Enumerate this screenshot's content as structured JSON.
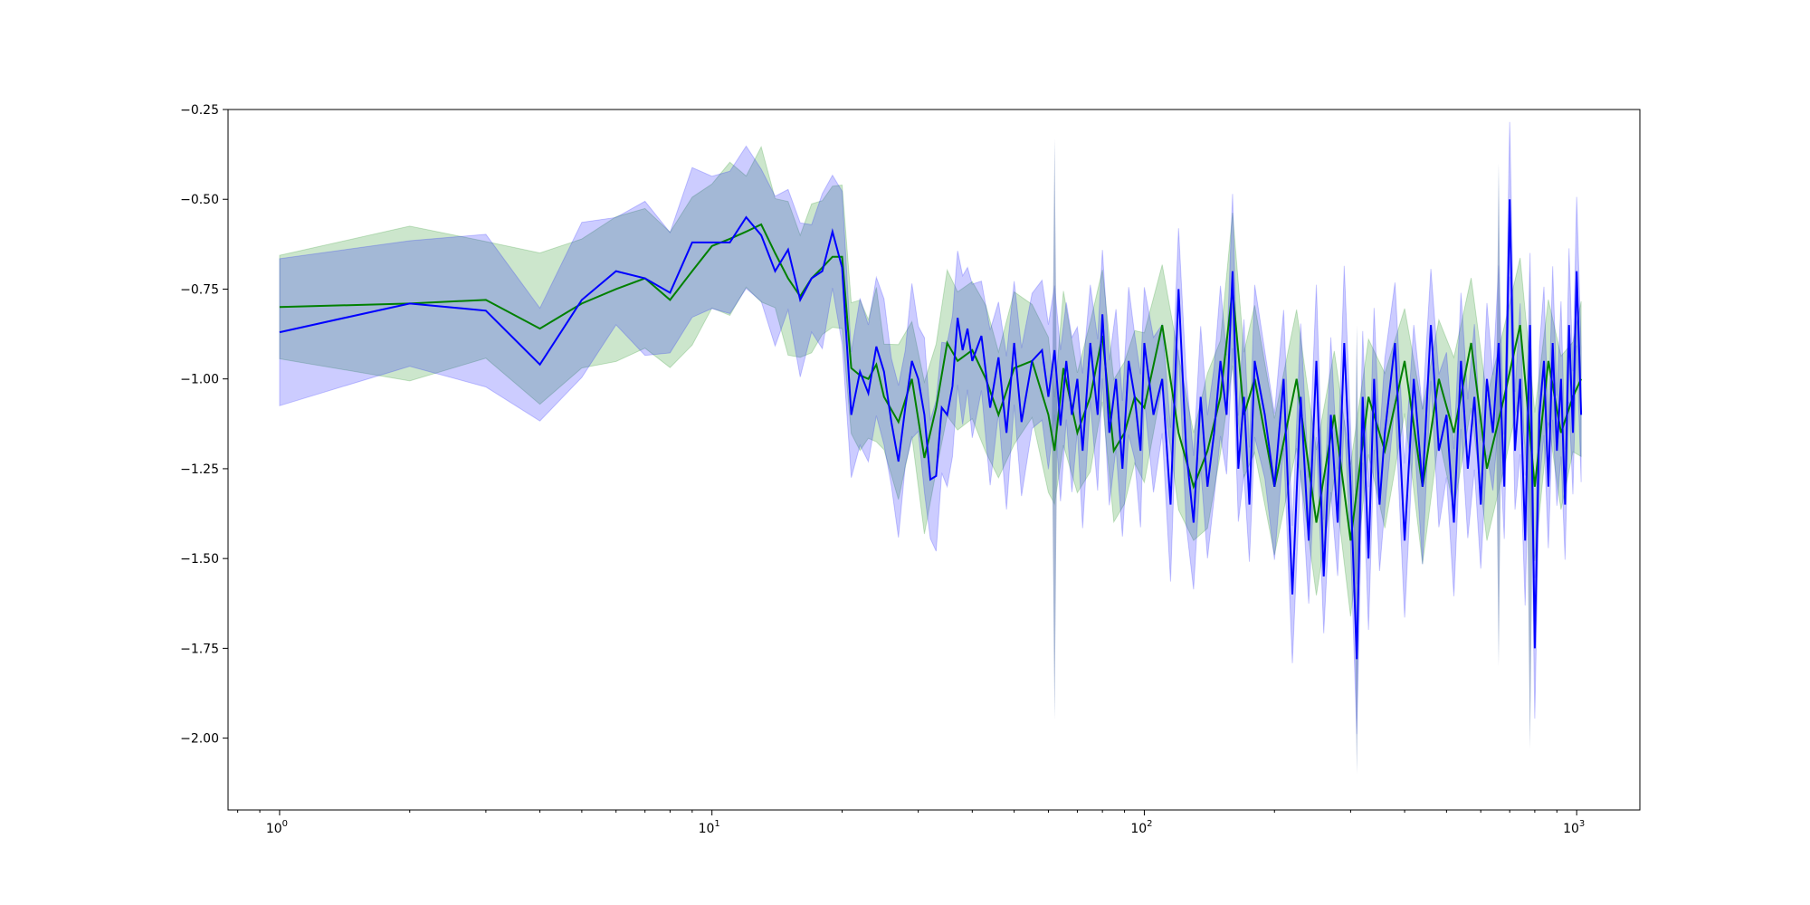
{
  "chart_data": {
    "type": "line",
    "title": "",
    "xlabel": "",
    "ylabel": "",
    "x_scale": "log",
    "xlim": [
      0.76,
      1400
    ],
    "ylim": [
      -2.2,
      -0.25
    ],
    "grid": false,
    "y_ticks": [
      {
        "value": -0.25,
        "label": "−0.25"
      },
      {
        "value": -0.5,
        "label": "−0.50"
      },
      {
        "value": -0.75,
        "label": "−0.75"
      },
      {
        "value": -1.0,
        "label": "−1.00"
      },
      {
        "value": -1.25,
        "label": "−1.25"
      },
      {
        "value": -1.5,
        "label": "−1.50"
      },
      {
        "value": -1.75,
        "label": "−1.75"
      },
      {
        "value": -2.0,
        "label": "−2.00"
      }
    ],
    "x_ticks": [
      {
        "value": 1,
        "base": "10",
        "exp": "0"
      },
      {
        "value": 10,
        "base": "10",
        "exp": "1"
      },
      {
        "value": 100,
        "base": "10",
        "exp": "2"
      },
      {
        "value": 1000,
        "base": "10",
        "exp": "3"
      }
    ],
    "series": [
      {
        "color": "#008000",
        "band_color": "#008000",
        "band_opacity": 0.2,
        "band_width": 0.18,
        "x": [
          1,
          2,
          3,
          4,
          5,
          6,
          7,
          8,
          9,
          10,
          11,
          12,
          13,
          14,
          15,
          16,
          17,
          18,
          19,
          20,
          21,
          22,
          23,
          24,
          25,
          27,
          29,
          31,
          33,
          35,
          37,
          40,
          43,
          46,
          50,
          55,
          60,
          62,
          65,
          70,
          75,
          80,
          85,
          90,
          95,
          100,
          110,
          120,
          130,
          140,
          150,
          160,
          170,
          180,
          200,
          225,
          250,
          275,
          300,
          330,
          360,
          400,
          440,
          480,
          520,
          570,
          620,
          680,
          740,
          800,
          860,
          920,
          980,
          1024
        ],
        "y": [
          -0.8,
          -0.79,
          -0.78,
          -0.86,
          -0.79,
          -0.75,
          -0.72,
          -0.78,
          -0.7,
          -0.63,
          -0.61,
          -0.59,
          -0.57,
          -0.65,
          -0.72,
          -0.77,
          -0.72,
          -0.69,
          -0.66,
          -0.66,
          -0.97,
          -0.99,
          -1.0,
          -0.96,
          -1.05,
          -1.12,
          -1.0,
          -1.22,
          -1.08,
          -0.9,
          -0.95,
          -0.92,
          -1.0,
          -1.1,
          -0.97,
          -0.95,
          -1.1,
          -1.2,
          -0.97,
          -1.15,
          -1.05,
          -0.88,
          -1.2,
          -1.15,
          -1.05,
          -1.08,
          -0.85,
          -1.15,
          -1.3,
          -1.2,
          -1.05,
          -0.75,
          -1.1,
          -1.0,
          -1.3,
          -1.0,
          -1.4,
          -1.1,
          -1.45,
          -1.05,
          -1.2,
          -0.95,
          -1.3,
          -1.0,
          -1.15,
          -0.9,
          -1.25,
          -1.05,
          -0.85,
          -1.3,
          -0.95,
          -1.15,
          -1.05,
          -1.0
        ]
      },
      {
        "color": "#0000ff",
        "band_color": "#0000ff",
        "band_opacity": 0.2,
        "band_width": 0.18,
        "x": [
          1,
          2,
          3,
          4,
          5,
          6,
          7,
          8,
          9,
          10,
          11,
          12,
          13,
          14,
          15,
          16,
          17,
          18,
          19,
          20,
          21,
          22,
          23,
          24,
          25,
          26,
          27,
          28,
          29,
          30,
          31,
          32,
          33,
          34,
          35,
          36,
          37,
          38,
          39,
          40,
          42,
          44,
          46,
          48,
          50,
          52,
          55,
          58,
          60,
          62,
          64,
          66,
          68,
          70,
          72,
          75,
          78,
          80,
          83,
          86,
          89,
          92,
          95,
          98,
          100,
          105,
          110,
          115,
          120,
          125,
          130,
          135,
          140,
          145,
          150,
          155,
          160,
          165,
          170,
          175,
          180,
          190,
          200,
          210,
          220,
          230,
          240,
          250,
          260,
          270,
          280,
          290,
          300,
          310,
          320,
          330,
          340,
          350,
          360,
          380,
          400,
          420,
          440,
          460,
          480,
          500,
          520,
          540,
          560,
          580,
          600,
          620,
          640,
          660,
          680,
          700,
          720,
          740,
          760,
          780,
          800,
          820,
          840,
          860,
          880,
          900,
          920,
          940,
          960,
          980,
          1000,
          1024
        ],
        "y": [
          -0.87,
          -0.79,
          -0.81,
          -0.96,
          -0.78,
          -0.7,
          -0.72,
          -0.76,
          -0.62,
          -0.62,
          -0.62,
          -0.55,
          -0.6,
          -0.7,
          -0.64,
          -0.78,
          -0.72,
          -0.7,
          -0.59,
          -0.69,
          -1.1,
          -0.98,
          -1.04,
          -0.91,
          -0.98,
          -1.12,
          -1.23,
          -1.08,
          -0.95,
          -1.0,
          -1.1,
          -1.28,
          -1.27,
          -1.08,
          -1.1,
          -1.02,
          -0.83,
          -0.92,
          -0.86,
          -0.95,
          -0.88,
          -1.08,
          -0.94,
          -1.15,
          -0.9,
          -1.12,
          -0.95,
          -0.92,
          -1.05,
          -0.92,
          -1.13,
          -0.95,
          -1.1,
          -1.0,
          -1.2,
          -0.9,
          -1.1,
          -0.82,
          -1.15,
          -1.0,
          -1.25,
          -0.95,
          -1.05,
          -1.2,
          -0.9,
          -1.1,
          -1.0,
          -1.35,
          -0.75,
          -1.2,
          -1.4,
          -1.05,
          -1.3,
          -1.15,
          -0.95,
          -1.1,
          -0.7,
          -1.25,
          -1.05,
          -1.35,
          -0.95,
          -1.1,
          -1.3,
          -1.0,
          -1.6,
          -1.05,
          -1.45,
          -0.95,
          -1.55,
          -1.1,
          -1.4,
          -0.9,
          -1.3,
          -1.78,
          -1.05,
          -1.5,
          -1.0,
          -1.35,
          -1.15,
          -0.9,
          -1.45,
          -1.0,
          -1.3,
          -0.85,
          -1.2,
          -1.1,
          -1.4,
          -0.95,
          -1.25,
          -1.05,
          -1.35,
          -1.0,
          -1.15,
          -0.9,
          -1.3,
          -0.5,
          -1.2,
          -1.0,
          -1.45,
          -0.85,
          -1.75,
          -1.1,
          -0.95,
          -1.3,
          -0.9,
          -1.2,
          -1.0,
          -1.35,
          -0.85,
          -1.15,
          -0.7,
          -1.1
        ]
      }
    ]
  },
  "highlights": [
    {
      "x": 62,
      "lo": -1.95,
      "hi": -0.33
    },
    {
      "x": 310,
      "lo": -2.1,
      "hi": -0.85
    },
    {
      "x": 660,
      "lo": -1.8,
      "hi": -0.4
    },
    {
      "x": 780,
      "lo": -2.03,
      "hi": -0.7
    }
  ]
}
